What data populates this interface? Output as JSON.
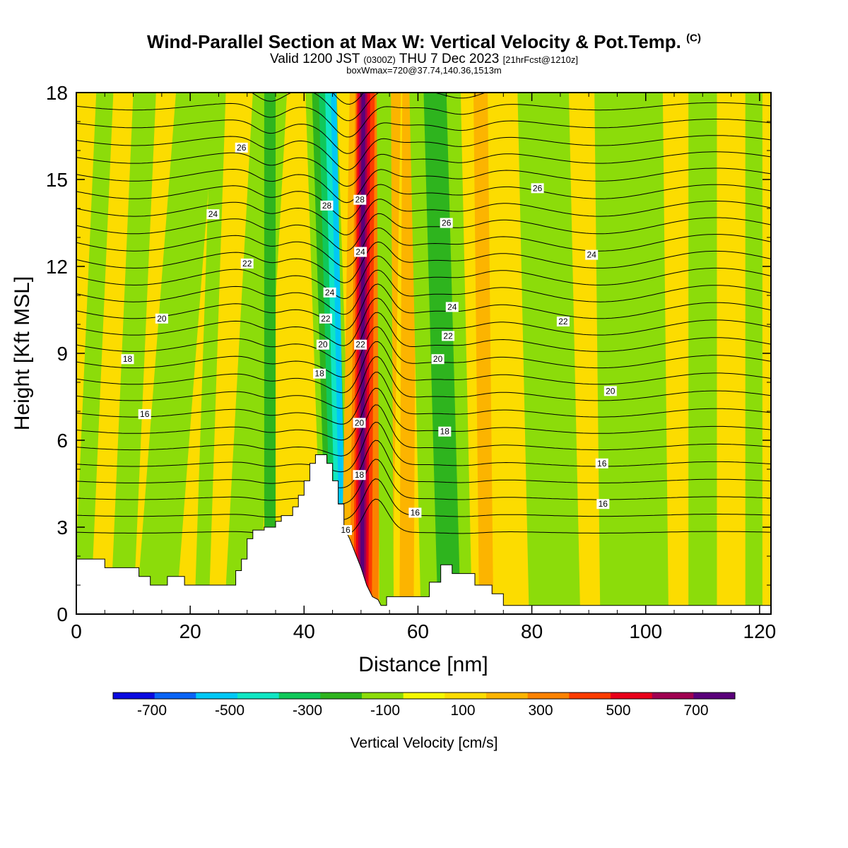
{
  "header": {
    "title_main": "Wind-Parallel Section at Max W: Vertical Velocity & Pot.Temp.",
    "title_mark": "(C)",
    "valid_prefix": "Valid 1200 JST",
    "valid_utc": "(0300Z)",
    "valid_date": "THU 7 Dec 2023",
    "forecast_tag": "[21hrFcst@1210z]",
    "box_info": "boxWmax=720@37.74,140.36,1513m"
  },
  "chart_data": {
    "type": "contour-section",
    "xlabel": "Distance [nm]",
    "ylabel": "Height [Kft MSL]",
    "xlim": [
      0,
      122
    ],
    "ylim": [
      0,
      18
    ],
    "xticks": [
      "0",
      "20",
      "40",
      "60",
      "80",
      "100",
      "120"
    ],
    "yticks": [
      "0",
      "3",
      "6",
      "9",
      "12",
      "15",
      "18"
    ],
    "colorbar": {
      "title": "Vertical Velocity [cm/s]",
      "levels": [
        -800,
        -700,
        -600,
        -500,
        -400,
        -300,
        -200,
        -100,
        0,
        100,
        200,
        300,
        400,
        500,
        600,
        700,
        800
      ],
      "colors": [
        "#0a0ae0",
        "#0a64f5",
        "#00c8f5",
        "#10e6c3",
        "#10c85a",
        "#2eb41e",
        "#8cdc0a",
        "#f4f800",
        "#fcdc00",
        "#fcb400",
        "#fc8200",
        "#fc3c00",
        "#e8001a",
        "#a00050",
        "#5a007a"
      ],
      "tick_labels": [
        "-700",
        "-500",
        "-300",
        "-100",
        "100",
        "300",
        "500",
        "700"
      ]
    },
    "terrain_profile": [
      [
        0,
        1.9
      ],
      [
        5,
        1.9
      ],
      [
        5,
        1.6
      ],
      [
        11,
        1.6
      ],
      [
        11,
        1.3
      ],
      [
        13,
        1.3
      ],
      [
        13,
        1.0
      ],
      [
        16,
        1.0
      ],
      [
        16,
        1.3
      ],
      [
        19,
        1.3
      ],
      [
        19,
        1.0
      ],
      [
        28,
        1.0
      ],
      [
        28,
        1.5
      ],
      [
        29,
        1.5
      ],
      [
        29,
        1.9
      ],
      [
        30,
        1.9
      ],
      [
        30,
        2.6
      ],
      [
        31,
        2.6
      ],
      [
        31,
        2.9
      ],
      [
        33,
        2.9
      ],
      [
        33,
        3.0
      ],
      [
        35,
        3.0
      ],
      [
        35,
        3.2
      ],
      [
        36,
        3.2
      ],
      [
        36,
        3.4
      ],
      [
        38,
        3.4
      ],
      [
        38,
        3.7
      ],
      [
        39,
        3.7
      ],
      [
        39,
        4.1
      ],
      [
        40,
        4.1
      ],
      [
        40,
        4.6
      ],
      [
        41,
        4.6
      ],
      [
        41,
        5.2
      ],
      [
        42,
        5.2
      ],
      [
        42,
        5.5
      ],
      [
        44,
        5.5
      ],
      [
        44,
        5.2
      ],
      [
        45,
        5.2
      ],
      [
        45,
        4.6
      ],
      [
        46,
        4.6
      ],
      [
        46,
        3.8
      ],
      [
        47,
        3.8
      ],
      [
        47,
        3.0
      ],
      [
        48,
        2.6
      ],
      [
        49,
        2.1
      ],
      [
        50,
        1.6
      ],
      [
        51,
        1.0
      ],
      [
        52,
        0.6
      ],
      [
        53,
        0.5
      ],
      [
        53.5,
        0.3
      ],
      [
        54.5,
        0.3
      ],
      [
        54.5,
        0.6
      ],
      [
        62,
        0.6
      ],
      [
        62,
        1.1
      ],
      [
        64,
        1.1
      ],
      [
        64,
        1.7
      ],
      [
        66,
        1.7
      ],
      [
        66,
        1.4
      ],
      [
        70,
        1.4
      ],
      [
        70,
        1.0
      ],
      [
        73,
        1.0
      ],
      [
        73,
        0.7
      ],
      [
        75,
        0.7
      ],
      [
        75,
        0.3
      ],
      [
        122,
        0.3
      ]
    ],
    "vertical_velocity_bands": [
      {
        "x_base": 1,
        "x_top": 5,
        "width": 3,
        "w": -150
      },
      {
        "x_base": 8,
        "x_top": 12,
        "width": 4,
        "w": -150
      },
      {
        "x_base": 14,
        "x_top": 21,
        "width": 7,
        "w": -150
      },
      {
        "x_base": 22,
        "x_top": 25,
        "width": 2.5,
        "w": -150
      },
      {
        "x_base": 29,
        "x_top": 34,
        "width": 6,
        "w": -150
      },
      {
        "x_base": 34,
        "x_top": 34,
        "width": 2,
        "w": -250
      },
      {
        "x_base": 46,
        "x_top": 43,
        "width": 5.5,
        "w": -150
      },
      {
        "x_base": 46,
        "x_top": 43.3,
        "width": 3.8,
        "w": -250
      },
      {
        "x_base": 46.3,
        "x_top": 44,
        "width": 2.8,
        "w": -350
      },
      {
        "x_base": 46.6,
        "x_top": 44.6,
        "width": 1.8,
        "w": -450
      },
      {
        "x_base": 46.9,
        "x_top": 45.2,
        "width": 1.0,
        "w": -600
      },
      {
        "x_base": 51,
        "x_top": 52.5,
        "width": 9,
        "w": 150
      },
      {
        "x_base": 50.5,
        "x_top": 51.5,
        "width": 5,
        "w": 250
      },
      {
        "x_base": 50.3,
        "x_top": 50.8,
        "width": 3.2,
        "w": 350
      },
      {
        "x_base": 50.2,
        "x_top": 50.5,
        "width": 2.2,
        "w": 450
      },
      {
        "x_base": 50.2,
        "x_top": 50.4,
        "width": 1.4,
        "w": 550
      },
      {
        "x_base": 50.2,
        "x_top": 50.4,
        "width": 0.7,
        "w": 650
      },
      {
        "x_base": 54.5,
        "x_top": 54,
        "width": 2.5,
        "w": -150
      },
      {
        "x_base": 58,
        "x_top": 58.5,
        "width": 2.5,
        "w": 150
      },
      {
        "x_base": 65,
        "x_top": 63,
        "width": 9,
        "w": -150
      },
      {
        "x_base": 65.5,
        "x_top": 63,
        "width": 4,
        "w": -250
      },
      {
        "x_base": 72,
        "x_top": 71,
        "width": 2.5,
        "w": 150
      },
      {
        "x_base": 84,
        "x_top": 82,
        "width": 9,
        "w": -150
      },
      {
        "x_base": 98,
        "x_top": 97,
        "width": 12,
        "w": -150
      },
      {
        "x_base": 110,
        "x_top": 110,
        "width": 5,
        "w": -150
      },
      {
        "x_base": 119,
        "x_top": 119,
        "width": 3,
        "w": -150
      }
    ],
    "theta_contours": {
      "levels": [
        15,
        15.5,
        16,
        16.5,
        17,
        17.5,
        18,
        18.5,
        19,
        19.5,
        20,
        20.5,
        21,
        21.5,
        22,
        22.5,
        23,
        23.5,
        24,
        24.5,
        25,
        25.5,
        26,
        26.5,
        27,
        27.5,
        28,
        28.5,
        29
      ],
      "labels": [
        {
          "text": "16",
          "x": 12,
          "z": 6.9
        },
        {
          "text": "18",
          "x": 9,
          "z": 8.8
        },
        {
          "text": "20",
          "x": 15,
          "z": 10.2
        },
        {
          "text": "22",
          "x": 30,
          "z": 12.1
        },
        {
          "text": "24",
          "x": 24,
          "z": 13.8
        },
        {
          "text": "26",
          "x": 29,
          "z": 16.1
        },
        {
          "text": "28",
          "x": 44,
          "z": 14.1
        },
        {
          "text": "24",
          "x": 44.5,
          "z": 11.1
        },
        {
          "text": "22",
          "x": 43.8,
          "z": 10.2
        },
        {
          "text": "20",
          "x": 43.3,
          "z": 9.3
        },
        {
          "text": "18",
          "x": 42.7,
          "z": 8.3
        },
        {
          "text": "16",
          "x": 47.3,
          "z": 2.9
        },
        {
          "text": "28",
          "x": 49.8,
          "z": 14.3
        },
        {
          "text": "24",
          "x": 49.9,
          "z": 12.5
        },
        {
          "text": "22",
          "x": 49.9,
          "z": 9.3
        },
        {
          "text": "20",
          "x": 49.7,
          "z": 6.6
        },
        {
          "text": "18",
          "x": 49.7,
          "z": 4.8
        },
        {
          "text": "16",
          "x": 59.5,
          "z": 3.5
        },
        {
          "text": "26",
          "x": 65,
          "z": 13.5
        },
        {
          "text": "24",
          "x": 66,
          "z": 10.6
        },
        {
          "text": "22",
          "x": 65.3,
          "z": 9.6
        },
        {
          "text": "20",
          "x": 63.5,
          "z": 8.8
        },
        {
          "text": "18",
          "x": 64.7,
          "z": 6.3
        },
        {
          "text": "26",
          "x": 81,
          "z": 14.7
        },
        {
          "text": "24",
          "x": 90.5,
          "z": 12.4
        },
        {
          "text": "22",
          "x": 85.5,
          "z": 10.1
        },
        {
          "text": "20",
          "x": 93.8,
          "z": 7.7
        },
        {
          "text": "16",
          "x": 92.3,
          "z": 5.2
        },
        {
          "text": "16",
          "x": 92.5,
          "z": 3.8
        }
      ]
    }
  }
}
